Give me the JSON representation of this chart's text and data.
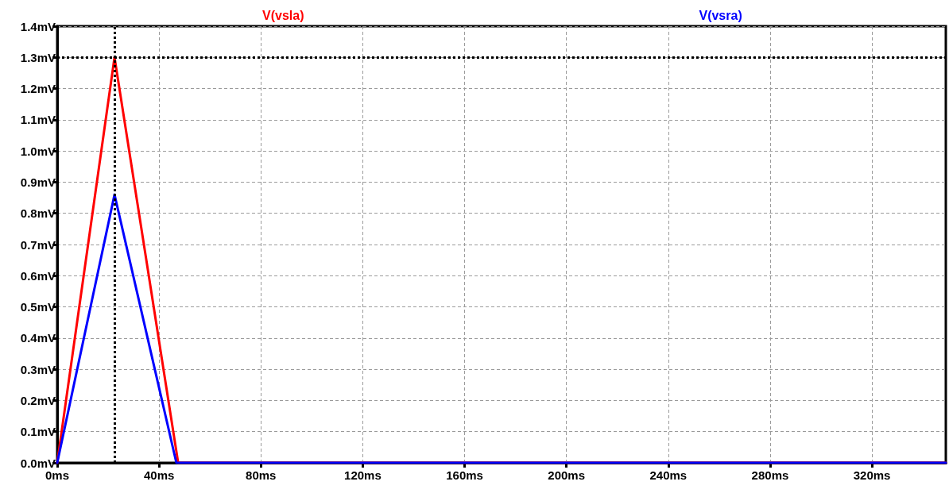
{
  "chart_data": {
    "type": "line",
    "series": [
      {
        "name": "V(vsla)",
        "color": "#ff0000",
        "x": [
          0,
          22.5,
          47.5,
          349
        ],
        "values": [
          0,
          1.3,
          0,
          0
        ]
      },
      {
        "name": "V(vsra)",
        "color": "#0000ff",
        "x": [
          0,
          22.5,
          46.8,
          349
        ],
        "values": [
          0,
          0.86,
          0,
          0
        ]
      }
    ],
    "xlim": [
      0,
      349
    ],
    "ylim": [
      0,
      1.4
    ],
    "xticks": [
      {
        "value": 0,
        "label": "0ms"
      },
      {
        "value": 40,
        "label": "40ms"
      },
      {
        "value": 80,
        "label": "80ms"
      },
      {
        "value": 120,
        "label": "120ms"
      },
      {
        "value": 160,
        "label": "160ms"
      },
      {
        "value": 200,
        "label": "200ms"
      },
      {
        "value": 240,
        "label": "240ms"
      },
      {
        "value": 280,
        "label": "280ms"
      },
      {
        "value": 320,
        "label": "320ms"
      }
    ],
    "yticks": [
      {
        "value": 0,
        "label": "0.0mV"
      },
      {
        "value": 0.1,
        "label": "0.1mV"
      },
      {
        "value": 0.2,
        "label": "0.2mV"
      },
      {
        "value": 0.3,
        "label": "0.3mV"
      },
      {
        "value": 0.4,
        "label": "0.4mV"
      },
      {
        "value": 0.5,
        "label": "0.5mV"
      },
      {
        "value": 0.6,
        "label": "0.6mV"
      },
      {
        "value": 0.7,
        "label": "0.7mV"
      },
      {
        "value": 0.8,
        "label": "0.8mV"
      },
      {
        "value": 0.9,
        "label": "0.9mV"
      },
      {
        "value": 1.0,
        "label": "1.0mV"
      },
      {
        "value": 1.1,
        "label": "1.1mV"
      },
      {
        "value": 1.2,
        "label": "1.2mV"
      },
      {
        "value": 1.3,
        "label": "1.3mV"
      },
      {
        "value": 1.4,
        "label": "1.4mV"
      }
    ],
    "ref_lines": [
      {
        "axis": "x",
        "value": 22.5,
        "color": "#000000",
        "line_style": "dotted"
      },
      {
        "axis": "y",
        "value": 1.3,
        "color": "#000000",
        "line_style": "dotted"
      }
    ],
    "grid": true,
    "legend": "top",
    "marker": "none",
    "line_style": "solid"
  }
}
